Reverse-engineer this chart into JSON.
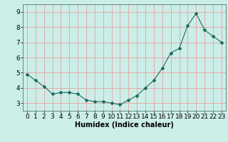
{
  "x": [
    0,
    1,
    2,
    3,
    4,
    5,
    6,
    7,
    8,
    9,
    10,
    11,
    12,
    13,
    14,
    15,
    16,
    17,
    18,
    19,
    20,
    21,
    22,
    23
  ],
  "y": [
    4.9,
    4.5,
    4.1,
    3.6,
    3.7,
    3.7,
    3.6,
    3.2,
    3.1,
    3.1,
    3.0,
    2.9,
    3.2,
    3.5,
    4.0,
    4.5,
    5.3,
    6.3,
    6.6,
    8.1,
    8.9,
    7.8,
    7.4,
    7.0
  ],
  "line_color": "#1a6b5a",
  "marker": "*",
  "marker_size": 3,
  "background_color": "#cceee8",
  "grid_color": "#e8a0a0",
  "xlabel": "Humidex (Indice chaleur)",
  "xlabel_fontsize": 7,
  "tick_fontsize": 6.5,
  "ylim": [
    2.5,
    9.5
  ],
  "xlim": [
    -0.5,
    23.5
  ],
  "yticks": [
    3,
    4,
    5,
    6,
    7,
    8,
    9
  ],
  "xticks": [
    0,
    1,
    2,
    3,
    4,
    5,
    6,
    7,
    8,
    9,
    10,
    11,
    12,
    13,
    14,
    15,
    16,
    17,
    18,
    19,
    20,
    21,
    22,
    23
  ]
}
